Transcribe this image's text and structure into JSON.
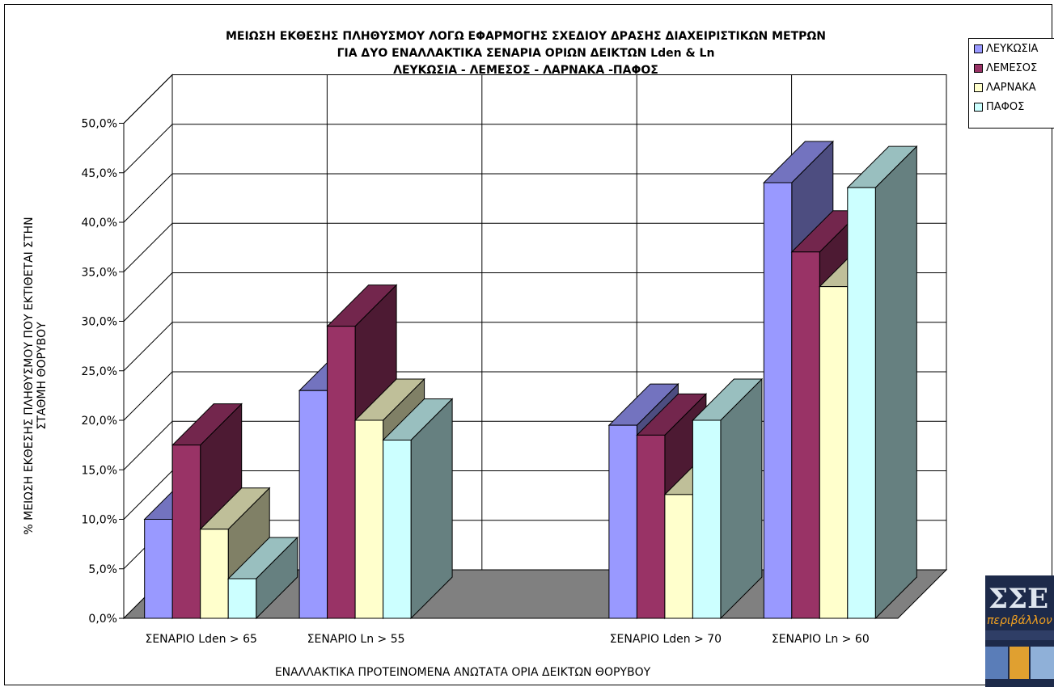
{
  "chart_data": {
    "type": "bar",
    "title_lines": [
      "ΜΕΙΩΣΗ ΕΚΘΕΣΗΣ ΠΛΗΘΥΣΜΟΥ ΛΟΓΩ ΕΦΑΡΜΟΓΗΣ ΣΧΕΔΙΟΥ ΔΡΑΣΗΣ ΔΙΑΧΕΙΡΙΣΤΙΚΩΝ ΜΕΤΡΩΝ",
      "ΓΙΑ ΔΥΟ ΕΝΑΛΛΑΚΤΙΚΑ ΣΕΝΑΡΙΑ ΟΡΙΩΝ ΔΕΙΚΤΩΝ Lden & Ln",
      "ΛΕΥΚΩΣΙΑ - ΛΕΜΕΣΟΣ - ΛΑΡΝΑΚΑ -ΠΑΦΟΣ"
    ],
    "xlabel": "ΕΝΑΛΛΑΚΤΙΚΑ ΠΡΟΤΕΙΝΟΜΕΝΑ ΑΝΩΤΑΤΑ ΟΡΙΑ ΔΕΙΚΤΩΝ ΘΟΡΥΒΟΥ",
    "ylabel_lines": [
      "% ΜΕΙΩΣΗ ΕΚΘΕΣΗΣ ΠΛΗΘΥΣΜΟΥ ΠΟΥ ΕΚΤΙΘΕΤΑΙ ΣΤΗΝ",
      "ΣΤΑΘΜΗ ΘΟΡΥΒΟΥ"
    ],
    "categories": [
      "ΣΕΝΑΡΙΟ Lden > 65",
      "ΣΕΝΑΡΙΟ Ln > 55",
      "",
      "ΣΕΝΑΡΙΟ Lden > 70",
      "ΣΕΝΑΡΙΟ Ln > 60"
    ],
    "ylim": [
      0,
      50
    ],
    "yticks": [
      "0,0%",
      "5,0%",
      "10,0%",
      "15,0%",
      "20,0%",
      "25,0%",
      "30,0%",
      "35,0%",
      "40,0%",
      "45,0%",
      "50,0%"
    ],
    "series": [
      {
        "name": "ΛΕΥΚΩΣΙΑ",
        "color": "#9999ff",
        "values": [
          10.0,
          23.0,
          null,
          19.5,
          44.0
        ]
      },
      {
        "name": "ΛΕΜΕΣΟΣ",
        "color": "#993366",
        "values": [
          17.5,
          29.5,
          null,
          18.5,
          37.0
        ]
      },
      {
        "name": "ΛΑΡΝΑΚΑ",
        "color": "#ffffcc",
        "values": [
          9.0,
          20.0,
          null,
          12.5,
          33.5
        ]
      },
      {
        "name": "ΠΑΦΟΣ",
        "color": "#ccffff",
        "values": [
          4.0,
          18.0,
          null,
          20.0,
          43.5
        ]
      }
    ],
    "legend_position": "top-right",
    "grid": true
  },
  "logo": {
    "text": "περιβάλλον"
  }
}
